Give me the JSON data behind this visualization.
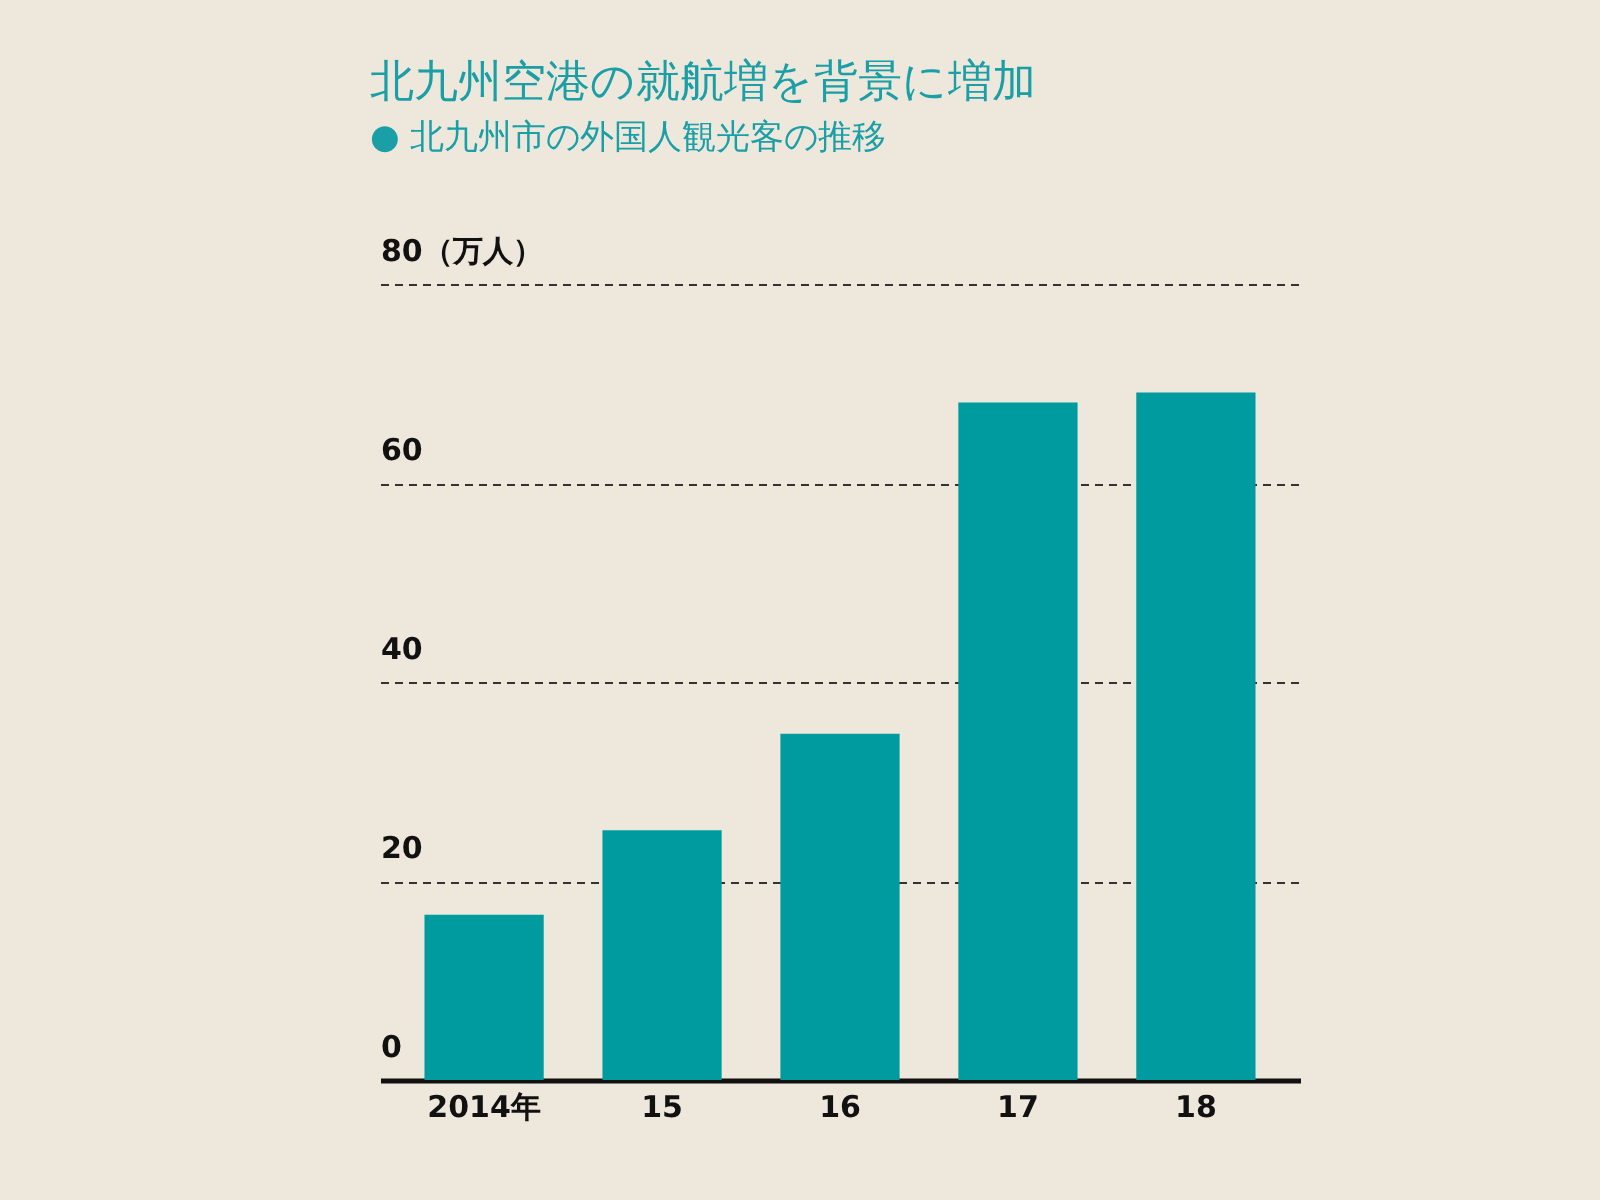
{
  "chart_data": {
    "type": "bar",
    "title": "北九州空港の就航増を背景に増加",
    "subtitle": "● 北九州市の外国人観光客の推移",
    "categories": [
      "2014年",
      "15",
      "16",
      "17",
      "18"
    ],
    "values": [
      16.6,
      25.1,
      34.8,
      68.1,
      69.1
    ],
    "color": "#009b9f",
    "ylim": [
      0,
      80
    ],
    "yticks": [
      0,
      20,
      40,
      60,
      {
        "value": 80,
        "label": "80（万人）"
      }
    ],
    "grid": "y"
  }
}
